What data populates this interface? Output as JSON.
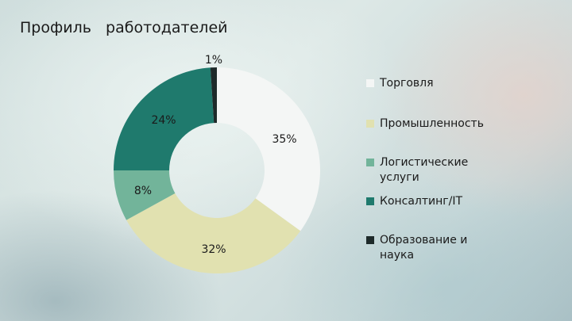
{
  "slide": {
    "title": "Профиль   работодателей"
  },
  "chart_data": {
    "type": "pie",
    "title": "Профиль   работодателей",
    "series": [
      {
        "name": "Торговля",
        "value": 35,
        "label": "35%",
        "color": "#f4f6f5"
      },
      {
        "name": "Промышленность",
        "value": 32,
        "label": "32%",
        "color": "#e1e1b0"
      },
      {
        "name": "Логистические услуги",
        "value": 8,
        "label": "8%",
        "color": "#72b49a"
      },
      {
        "name": "Консалтинг/IT",
        "value": 24,
        "label": "24%",
        "color": "#1f7a6d"
      },
      {
        "name": "Образование и наука",
        "value": 1,
        "label": "1%",
        "color": "#1e2a2a"
      }
    ],
    "legend_position": "right"
  }
}
